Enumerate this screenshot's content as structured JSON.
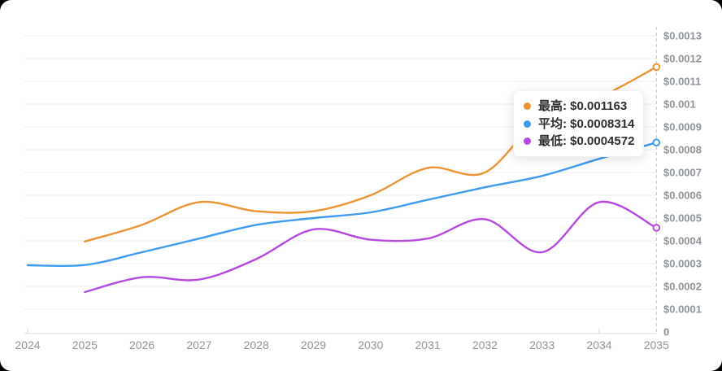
{
  "card": {
    "background": "#ffffff",
    "outer_background": "#000000"
  },
  "tooltip": {
    "items": [
      {
        "label": "最高",
        "value": "$0.001163",
        "color": "#EE9331"
      },
      {
        "label": "平均",
        "value": "$0.0008314",
        "color": "#3C9BF0"
      },
      {
        "label": "最低",
        "value": "$0.0004572",
        "color": "#B648DF"
      }
    ]
  },
  "chart_data": {
    "type": "line",
    "title": "",
    "xlabel": "",
    "ylabel": "",
    "x_labels": [
      "2024",
      "2025",
      "2026",
      "2027",
      "2028",
      "2029",
      "2030",
      "2031",
      "2032",
      "2033",
      "2034",
      "2035"
    ],
    "y_tick_labels": [
      "$0.0013",
      "$0.0012",
      "$0.0011",
      "$0.001",
      "$0.0009",
      "$0.0008",
      "$0.0007",
      "$0.0006",
      "$0.0005",
      "$0.0004",
      "$0.0003",
      "$0.0002",
      "$0.0001",
      "0"
    ],
    "ylim": [
      0,
      0.0013
    ],
    "y_step": 0.0001,
    "grid": "horizontal",
    "smooth": true,
    "legend_position": "none",
    "axis_pointer": {
      "at_x_label": "2035",
      "style": "dashed-vertical"
    },
    "series": [
      {
        "name": "最高",
        "color": "#EE9331",
        "start_year": 2025,
        "end_marker": true,
        "values": [
          0.000397,
          0.00047,
          0.00057,
          0.00053,
          0.00053,
          0.0006,
          0.00072,
          0.0007,
          0.00095,
          0.00103,
          0.001163
        ]
      },
      {
        "name": "平均",
        "color": "#3C9BF0",
        "start_year": 2024,
        "end_marker": true,
        "values": [
          0.000293,
          0.000294,
          0.00035,
          0.00041,
          0.00047,
          0.0005,
          0.000525,
          0.00058,
          0.000635,
          0.000685,
          0.00076,
          0.0008314
        ]
      },
      {
        "name": "最低",
        "color": "#B648DF",
        "start_year": 2025,
        "end_marker": true,
        "values": [
          0.000175,
          0.00024,
          0.00023,
          0.00032,
          0.00045,
          0.000405,
          0.00041,
          0.000495,
          0.00035,
          0.00057,
          0.0004572
        ]
      }
    ],
    "colors": {
      "gridline": "#f3f3f3",
      "axis_line": "#e8e8e8",
      "tick": "#d5d5d5",
      "axis_pointer": "#c8ccd2",
      "tick_label": "#8f949b"
    }
  }
}
